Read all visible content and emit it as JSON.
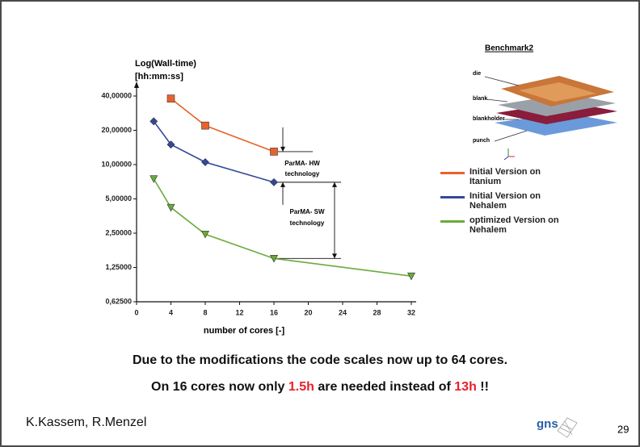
{
  "chart_data": {
    "type": "line",
    "y_label": [
      "Log(Wall-time)",
      "[hh:mm:ss]"
    ],
    "x_label": "number of cores [-]",
    "xlim": [
      0,
      32
    ],
    "xticks": [
      0,
      4,
      8,
      12,
      16,
      20,
      24,
      28,
      32
    ],
    "ylim": [
      0.625,
      40
    ],
    "log_y": true,
    "yticks": [
      {
        "value": 0.625,
        "label": "0,62500"
      },
      {
        "value": 1.25,
        "label": "1,25000"
      },
      {
        "value": 2.5,
        "label": "2,50000"
      },
      {
        "value": 5,
        "label": "5,00000"
      },
      {
        "value": 10,
        "label": "10,00000"
      },
      {
        "value": 20,
        "label": "20,00000"
      },
      {
        "value": 40,
        "label": "40,00000"
      }
    ],
    "legend": "right",
    "series": [
      {
        "name": "Initial Version on Itanium",
        "color": "#e8622c",
        "marker": "square",
        "x": [
          4,
          8,
          16
        ],
        "values": [
          38,
          22,
          13
        ]
      },
      {
        "name": "Initial Version on Nehalem",
        "color": "#34489a",
        "marker": "diamond",
        "x": [
          2,
          4,
          8,
          16
        ],
        "values": [
          24,
          15,
          10.5,
          7
        ]
      },
      {
        "name": "optimized Version on Nehalem",
        "color": "#6aaa3a",
        "marker": "triangle",
        "x": [
          2,
          4,
          8,
          16,
          32
        ],
        "values": [
          7.5,
          4.2,
          2.45,
          1.5,
          1.05
        ]
      }
    ],
    "annotations": [
      [
        "ParMA- HW",
        "technology"
      ],
      [
        "ParMA- SW",
        "technology"
      ]
    ]
  },
  "figure": {
    "title": "Benchmark2",
    "labels": [
      "die",
      "blank",
      "blankholder",
      "punch"
    ]
  },
  "message": {
    "line1": "Due to the modifications the code scales now up to 64 cores.",
    "line2": [
      "On 16 cores now only ",
      "1.5h",
      " are needed instead of ",
      "13h",
      " !!"
    ]
  },
  "footer": {
    "authors": "K.Kassem, R.Menzel",
    "logo": "gns",
    "page": "29"
  }
}
